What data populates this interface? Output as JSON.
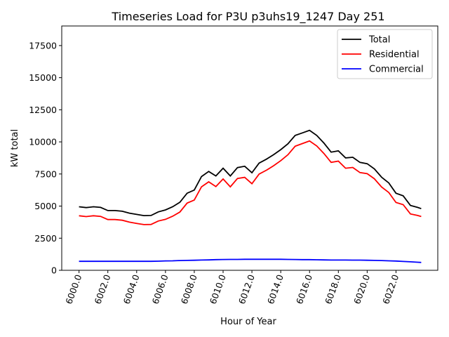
{
  "chart_data": {
    "type": "line",
    "title": "Timeseries Load for P3U p3uhs19_1247  Day 251",
    "xlabel": "Hour of Year",
    "ylabel": "kW total",
    "xlim": [
      5998.8,
      6024.9
    ],
    "ylim": [
      0,
      19025
    ],
    "xticks": [
      6000,
      6002,
      6004,
      6006,
      6008,
      6010,
      6012,
      6014,
      6016,
      6018,
      6020,
      6022
    ],
    "xtick_labels": [
      "6000.0",
      "6002.0",
      "6004.0",
      "6006.0",
      "6008.0",
      "6010.0",
      "6012.0",
      "6014.0",
      "6016.0",
      "6018.0",
      "6020.0",
      "6022.0"
    ],
    "yticks": [
      0,
      2500,
      5000,
      7500,
      10000,
      12500,
      15000,
      17500
    ],
    "ytick_labels": [
      "0",
      "2500",
      "5000",
      "7500",
      "10000",
      "12500",
      "15000",
      "17500"
    ],
    "grid": false,
    "legend_position": "top-right",
    "x": [
      6000,
      6000.5,
      6001,
      6001.5,
      6002,
      6002.5,
      6003,
      6003.5,
      6004,
      6004.5,
      6005,
      6005.5,
      6006,
      6006.5,
      6007,
      6007.5,
      6008,
      6008.5,
      6009,
      6009.5,
      6010,
      6010.5,
      6011,
      6011.5,
      6012,
      6012.5,
      6013,
      6013.5,
      6014,
      6014.5,
      6015,
      6015.5,
      6016,
      6016.5,
      6017,
      6017.5,
      6018,
      6018.5,
      6019,
      6019.5,
      6020,
      6020.5,
      6021,
      6021.5,
      6022,
      6022.5,
      6023,
      6023.5,
      6023.75
    ],
    "series": [
      {
        "name": "Total",
        "color": "#000000",
        "values": [
          4950,
          4880,
          4950,
          4900,
          4650,
          4650,
          4600,
          4450,
          4350,
          4260,
          4270,
          4550,
          4700,
          4950,
          5300,
          6000,
          6250,
          7300,
          7700,
          7350,
          7950,
          7350,
          8000,
          8100,
          7600,
          8350,
          8650,
          9000,
          9400,
          9850,
          10500,
          10700,
          10900,
          10500,
          9900,
          9200,
          9300,
          8750,
          8800,
          8400,
          8300,
          7900,
          7250,
          6800,
          6000,
          5800,
          5050,
          4900,
          4800
        ]
      },
      {
        "name": "Residential",
        "color": "#ff0000",
        "values": [
          4250,
          4180,
          4250,
          4200,
          3950,
          3950,
          3900,
          3750,
          3650,
          3560,
          3570,
          3840,
          3970,
          4210,
          4540,
          5230,
          5470,
          6500,
          6890,
          6520,
          7110,
          6500,
          7150,
          7240,
          6740,
          7490,
          7790,
          8140,
          8540,
          9000,
          9660,
          9870,
          10070,
          9680,
          9090,
          8400,
          8500,
          7950,
          8010,
          7610,
          7520,
          7130,
          6490,
          6060,
          5280,
          5110,
          4390,
          4270,
          4190
        ]
      },
      {
        "name": "Commercial",
        "color": "#0000ff",
        "values": [
          700,
          700,
          700,
          700,
          700,
          700,
          700,
          700,
          700,
          700,
          700,
          710,
          730,
          740,
          760,
          770,
          780,
          800,
          810,
          830,
          840,
          850,
          850,
          860,
          860,
          860,
          860,
          860,
          860,
          850,
          840,
          830,
          830,
          820,
          810,
          800,
          800,
          800,
          790,
          790,
          780,
          770,
          760,
          740,
          720,
          690,
          660,
          630,
          610
        ]
      }
    ]
  }
}
